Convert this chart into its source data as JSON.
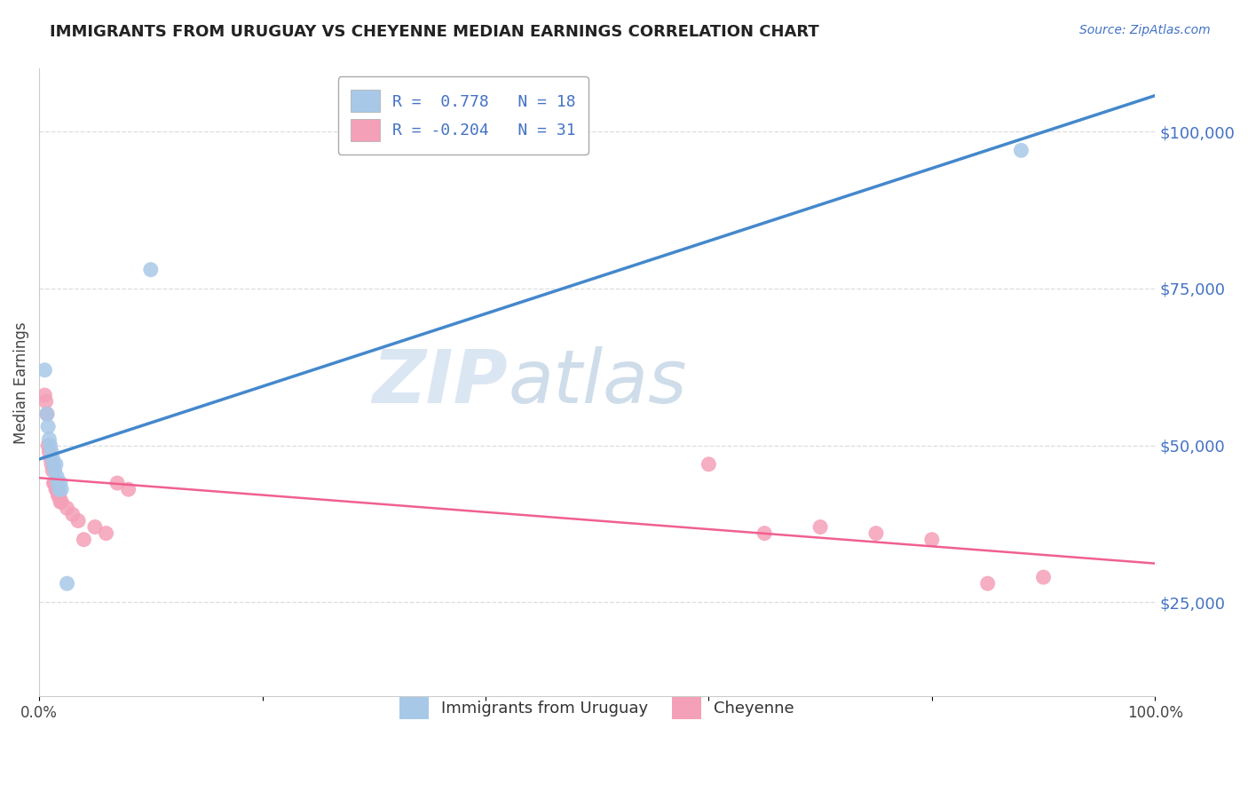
{
  "title": "IMMIGRANTS FROM URUGUAY VS CHEYENNE MEDIAN EARNINGS CORRELATION CHART",
  "source": "Source: ZipAtlas.com",
  "ylabel": "Median Earnings",
  "ytick_labels": [
    "$25,000",
    "$50,000",
    "$75,000",
    "$100,000"
  ],
  "ytick_values": [
    25000,
    50000,
    75000,
    100000
  ],
  "ylim": [
    10000,
    110000
  ],
  "xlim": [
    0.0,
    1.0
  ],
  "blue_color": "#a8c8e8",
  "pink_color": "#f4a0b8",
  "blue_line_color": "#4488cc",
  "pink_line_color": "#f06090",
  "title_color": "#222222",
  "source_color": "#4472c4",
  "R_blue": 0.778,
  "N_blue": 18,
  "R_pink": -0.204,
  "N_pink": 31,
  "blue_points": [
    [
      0.005,
      62000
    ],
    [
      0.007,
      55000
    ],
    [
      0.008,
      53000
    ],
    [
      0.009,
      51000
    ],
    [
      0.01,
      50000
    ],
    [
      0.011,
      49000
    ],
    [
      0.012,
      48000
    ],
    [
      0.013,
      47000
    ],
    [
      0.014,
      46000
    ],
    [
      0.015,
      47000
    ],
    [
      0.016,
      45000
    ],
    [
      0.017,
      44000
    ],
    [
      0.018,
      43000
    ],
    [
      0.019,
      44000
    ],
    [
      0.02,
      43000
    ],
    [
      0.025,
      28000
    ],
    [
      0.1,
      78000
    ],
    [
      0.88,
      97000
    ]
  ],
  "pink_points": [
    [
      0.005,
      58000
    ],
    [
      0.006,
      57000
    ],
    [
      0.007,
      55000
    ],
    [
      0.008,
      50000
    ],
    [
      0.009,
      49000
    ],
    [
      0.01,
      48000
    ],
    [
      0.011,
      47000
    ],
    [
      0.012,
      46000
    ],
    [
      0.013,
      44000
    ],
    [
      0.014,
      44000
    ],
    [
      0.015,
      43000
    ],
    [
      0.016,
      43000
    ],
    [
      0.017,
      42000
    ],
    [
      0.018,
      42000
    ],
    [
      0.019,
      41000
    ],
    [
      0.02,
      41000
    ],
    [
      0.025,
      40000
    ],
    [
      0.03,
      39000
    ],
    [
      0.035,
      38000
    ],
    [
      0.04,
      35000
    ],
    [
      0.05,
      37000
    ],
    [
      0.06,
      36000
    ],
    [
      0.07,
      44000
    ],
    [
      0.08,
      43000
    ],
    [
      0.6,
      47000
    ],
    [
      0.65,
      36000
    ],
    [
      0.7,
      37000
    ],
    [
      0.75,
      36000
    ],
    [
      0.8,
      35000
    ],
    [
      0.85,
      28000
    ],
    [
      0.9,
      29000
    ]
  ],
  "watermark_zip": "ZIP",
  "watermark_atlas": "atlas",
  "grid_color": "#dddddd",
  "background_color": "#ffffff",
  "legend_text_color": "#4472c4"
}
